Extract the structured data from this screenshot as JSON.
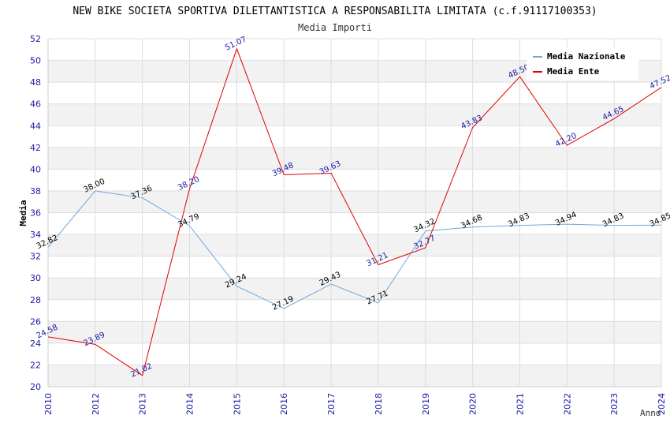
{
  "chart_data": {
    "type": "line",
    "title": "NEW BIKE SOCIETA SPORTIVA DILETTANTISTICA A RESPONSABILITA LIMITATA (c.f.91117100353)",
    "subtitle": "Media Importi",
    "xlabel": "Anno",
    "ylabel": "Media",
    "ylim": [
      20,
      52
    ],
    "ytick_step": 2,
    "grid": true,
    "legend_position": "top-right",
    "x": [
      "2010",
      "2012",
      "2013",
      "2014",
      "2015",
      "2016",
      "2017",
      "2018",
      "2019",
      "2020",
      "2021",
      "2022",
      "2023",
      "2024"
    ],
    "series": [
      {
        "name": "Media Nazionale",
        "color": "#6fa8dc",
        "values": [
          32.82,
          38.0,
          37.36,
          34.79,
          29.24,
          27.19,
          29.43,
          27.71,
          34.32,
          34.68,
          34.83,
          34.94,
          34.83,
          34.85
        ],
        "labels": [
          "32.82",
          "38.00",
          "37.36",
          "34.79",
          "29.24",
          "27.19",
          "29.43",
          "27.71",
          "34.32",
          "34.68",
          "34.83",
          "34.94",
          "34.83",
          "34.85"
        ]
      },
      {
        "name": "Media Ente",
        "color": "#e00000",
        "values": [
          24.58,
          23.89,
          21.02,
          38.2,
          51.07,
          39.48,
          39.63,
          31.21,
          32.77,
          43.83,
          48.5,
          42.2,
          44.65,
          47.52
        ],
        "labels": [
          "24.58",
          "23.89",
          "21.02",
          "38.20",
          "51.07",
          "39.48",
          "39.63",
          "31.21",
          "32.77",
          "43.83",
          "48.50",
          "42.20",
          "44.65",
          "47.52"
        ]
      }
    ]
  }
}
